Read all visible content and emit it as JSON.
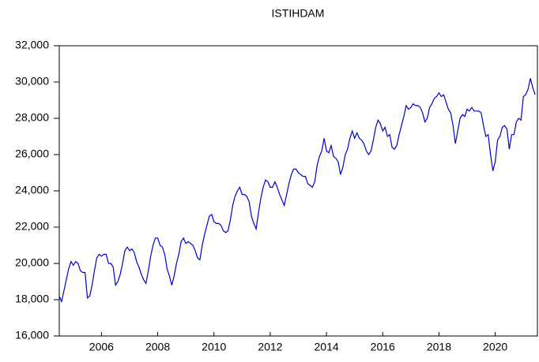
{
  "chart_data": {
    "type": "line",
    "title": "ISTIHDAM",
    "x": [
      2005.0,
      2005.083,
      2005.167,
      2005.25,
      2005.333,
      2005.417,
      2005.5,
      2005.583,
      2005.667,
      2005.75,
      2005.833,
      2005.917,
      2006.0,
      2006.083,
      2006.167,
      2006.25,
      2006.333,
      2006.417,
      2006.5,
      2006.583,
      2006.667,
      2006.75,
      2006.833,
      2006.917,
      2007.0,
      2007.083,
      2007.167,
      2007.25,
      2007.333,
      2007.417,
      2007.5,
      2007.583,
      2007.667,
      2007.75,
      2007.833,
      2007.917,
      2008.0,
      2008.083,
      2008.167,
      2008.25,
      2008.333,
      2008.417,
      2008.5,
      2008.583,
      2008.667,
      2008.75,
      2008.833,
      2008.917,
      2009.0,
      2009.083,
      2009.167,
      2009.25,
      2009.333,
      2009.417,
      2009.5,
      2009.583,
      2009.667,
      2009.75,
      2009.833,
      2009.917,
      2010.0,
      2010.083,
      2010.167,
      2010.25,
      2010.333,
      2010.417,
      2010.5,
      2010.583,
      2010.667,
      2010.75,
      2010.833,
      2010.917,
      2011.0,
      2011.083,
      2011.167,
      2011.25,
      2011.333,
      2011.417,
      2011.5,
      2011.583,
      2011.667,
      2011.75,
      2011.833,
      2011.917,
      2012.0,
      2012.083,
      2012.167,
      2012.25,
      2012.333,
      2012.417,
      2012.5,
      2012.583,
      2012.667,
      2012.75,
      2012.833,
      2012.917,
      2013.0,
      2013.083,
      2013.167,
      2013.25,
      2013.333,
      2013.417,
      2013.5,
      2013.583,
      2013.667,
      2013.75,
      2013.833,
      2013.917,
      2014.0,
      2014.083,
      2014.167,
      2014.25,
      2014.333,
      2014.417,
      2014.5,
      2014.583,
      2014.667,
      2014.75,
      2014.833,
      2014.917,
      2015.0,
      2015.083,
      2015.167,
      2015.25,
      2015.333,
      2015.417,
      2015.5,
      2015.583,
      2015.667,
      2015.75,
      2015.833,
      2015.917,
      2016.0,
      2016.083,
      2016.167,
      2016.25,
      2016.333,
      2016.417,
      2016.5,
      2016.583,
      2016.667,
      2016.75,
      2016.833,
      2016.917,
      2017.0,
      2017.083,
      2017.167,
      2017.25,
      2017.333,
      2017.417,
      2017.5,
      2017.583,
      2017.667,
      2017.75,
      2017.833,
      2017.917,
      2018.0,
      2018.083,
      2018.167,
      2018.25,
      2018.333,
      2018.417,
      2018.5,
      2018.583,
      2018.667,
      2018.75,
      2018.833,
      2018.917,
      2019.0,
      2019.083,
      2019.167,
      2019.25,
      2019.333,
      2019.417,
      2019.5,
      2019.583,
      2019.667,
      2019.75,
      2019.833,
      2019.917,
      2020.0,
      2020.083,
      2020.167,
      2020.25,
      2020.333,
      2020.417,
      2020.5,
      2020.583,
      2020.667,
      2020.75,
      2020.833,
      2020.917,
      2021.0,
      2021.083,
      2021.167,
      2021.25,
      2021.333,
      2021.417,
      2021.5,
      2021.583,
      2021.667,
      2021.75,
      2021.833,
      2021.917
    ],
    "series": [
      {
        "name": "ISTIHDAM",
        "color": "#0000cc",
        "values": [
          18200,
          17900,
          18500,
          19100,
          19700,
          20100,
          19900,
          20100,
          20000,
          19600,
          19500,
          19500,
          18100,
          18200,
          18800,
          19600,
          20300,
          20500,
          20400,
          20500,
          20500,
          20000,
          20000,
          19800,
          18800,
          19000,
          19400,
          20000,
          20700,
          20900,
          20700,
          20800,
          20600,
          20100,
          19800,
          19400,
          19100,
          18900,
          19600,
          20400,
          21000,
          21400,
          21400,
          21000,
          20900,
          20500,
          19700,
          19300,
          18800,
          19300,
          20000,
          20500,
          21200,
          21400,
          21100,
          21200,
          21100,
          21000,
          20700,
          20300,
          20200,
          21000,
          21600,
          22100,
          22600,
          22700,
          22300,
          22200,
          22200,
          22100,
          21800,
          21700,
          21800,
          22400,
          23200,
          23700,
          24000,
          24200,
          23800,
          23800,
          23700,
          23400,
          22600,
          22200,
          21900,
          22800,
          23600,
          24200,
          24600,
          24500,
          24200,
          24200,
          24500,
          24200,
          23800,
          23500,
          23200,
          23800,
          24400,
          24900,
          25200,
          25200,
          25000,
          24900,
          24800,
          24800,
          24400,
          24300,
          24200,
          24500,
          25400,
          25900,
          26200,
          26900,
          26200,
          26100,
          26500,
          25900,
          25800,
          25600,
          24900,
          25300,
          26000,
          26300,
          26900,
          27300,
          26900,
          27200,
          26900,
          26800,
          26600,
          26200,
          26000,
          26200,
          26800,
          27500,
          27900,
          27700,
          27300,
          27500,
          27000,
          27100,
          26400,
          26300,
          26500,
          27100,
          27600,
          28100,
          28700,
          28500,
          28600,
          28800,
          28700,
          28700,
          28600,
          28300,
          27800,
          28000,
          28600,
          28800,
          29100,
          29200,
          29400,
          29200,
          29300,
          28900,
          28500,
          28300,
          27600,
          26600,
          27300,
          28000,
          28200,
          28100,
          28500,
          28400,
          28600,
          28400,
          28400,
          28400,
          28300,
          27600,
          27000,
          27100,
          26000,
          25100,
          25600,
          26800,
          27000,
          27500,
          27600,
          27400,
          26300,
          27100,
          27100,
          27800,
          28000,
          27900,
          29200,
          29300,
          29600,
          30200,
          29700,
          29300
        ]
      }
    ],
    "xlim": [
      2005,
      2022
    ],
    "xticks": [
      {
        "value": 2006.5,
        "label": "2006"
      },
      {
        "value": 2008.5,
        "label": "2008"
      },
      {
        "value": 2010.5,
        "label": "2010"
      },
      {
        "value": 2012.5,
        "label": "2012"
      },
      {
        "value": 2014.5,
        "label": "2014"
      },
      {
        "value": 2016.5,
        "label": "2016"
      },
      {
        "value": 2018.5,
        "label": "2018"
      },
      {
        "value": 2020.5,
        "label": "2020"
      }
    ],
    "ylim": [
      16000,
      32000
    ],
    "yticks": [
      {
        "value": 16000,
        "label": "16,000"
      },
      {
        "value": 18000,
        "label": "18,000"
      },
      {
        "value": 20000,
        "label": "20,000"
      },
      {
        "value": 22000,
        "label": "22,000"
      },
      {
        "value": 24000,
        "label": "24,000"
      },
      {
        "value": 26000,
        "label": "26,000"
      },
      {
        "value": 28000,
        "label": "28,000"
      },
      {
        "value": 30000,
        "label": "30,000"
      },
      {
        "value": 32000,
        "label": "32,000"
      }
    ]
  }
}
